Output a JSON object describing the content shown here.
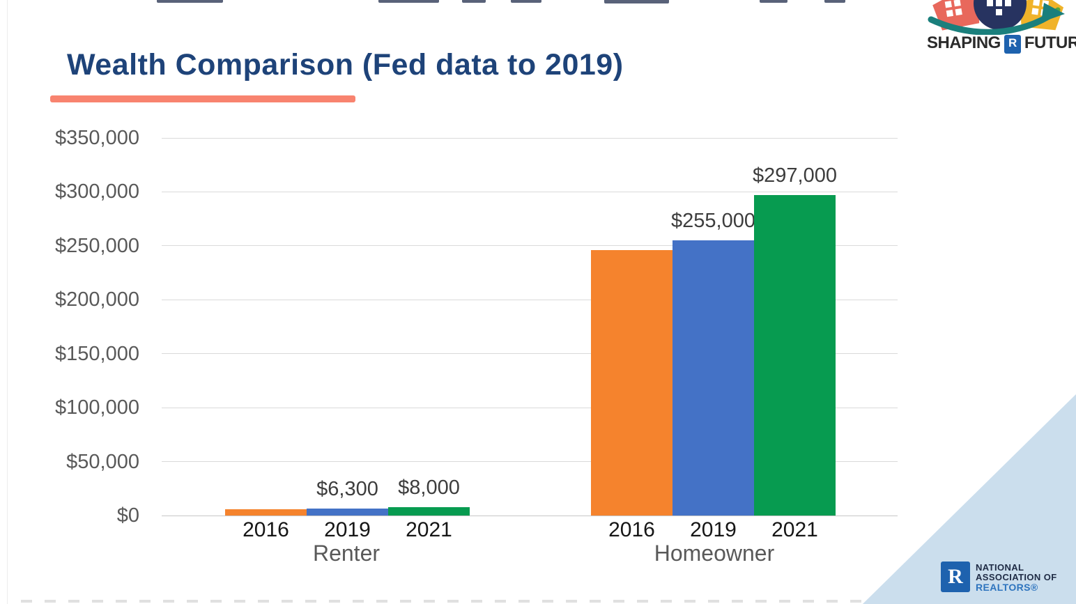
{
  "header": {
    "title": "Wealth Comparison (Fed data to 2019)",
    "title_color": "#1E4379",
    "accent_bar_color": "#F8836F"
  },
  "branding": {
    "top_logo": {
      "word_left": "SHAPING",
      "r_mark": "R",
      "word_right": "FUTURE"
    },
    "nar_logo": {
      "r_mark": "R",
      "line1": "NATIONAL",
      "line2": "ASSOCIATION OF",
      "line3": "REALTORS®"
    }
  },
  "colors": {
    "bar_2016": "#F5832D",
    "bar_2019": "#4472C6",
    "bar_2021": "#079B50",
    "gridline": "#DADADA",
    "corner_triangle": "#CBDEED",
    "realtor_blue": "#1E62AE"
  },
  "chart_data": {
    "type": "bar",
    "title": "Wealth Comparison (Fed data to 2019)",
    "categories": [
      "Renter",
      "Homeowner"
    ],
    "series": [
      {
        "name": "2016",
        "color": "#F5832D",
        "values": [
          5500,
          246000
        ],
        "value_labels": [
          "",
          ""
        ]
      },
      {
        "name": "2019",
        "color": "#4472C6",
        "values": [
          6300,
          255000
        ],
        "value_labels": [
          "$6,300",
          "$255,000"
        ]
      },
      {
        "name": "2021",
        "color": "#079B50",
        "values": [
          8000,
          297000
        ],
        "value_labels": [
          "$8,000",
          "$297,000"
        ]
      }
    ],
    "y_tick_labels": [
      "$350,000",
      "$300,000",
      "$250,000",
      "$200,000",
      "$150,000",
      "$100,000",
      "$50,000",
      "$0"
    ],
    "y_tick_values": [
      350000,
      300000,
      250000,
      200000,
      150000,
      100000,
      50000,
      0
    ],
    "ylim": [
      0,
      350000
    ],
    "grid": true,
    "legend_position": "none",
    "x_tick_labels_per_group": [
      "2016",
      "2019",
      "2021"
    ]
  }
}
